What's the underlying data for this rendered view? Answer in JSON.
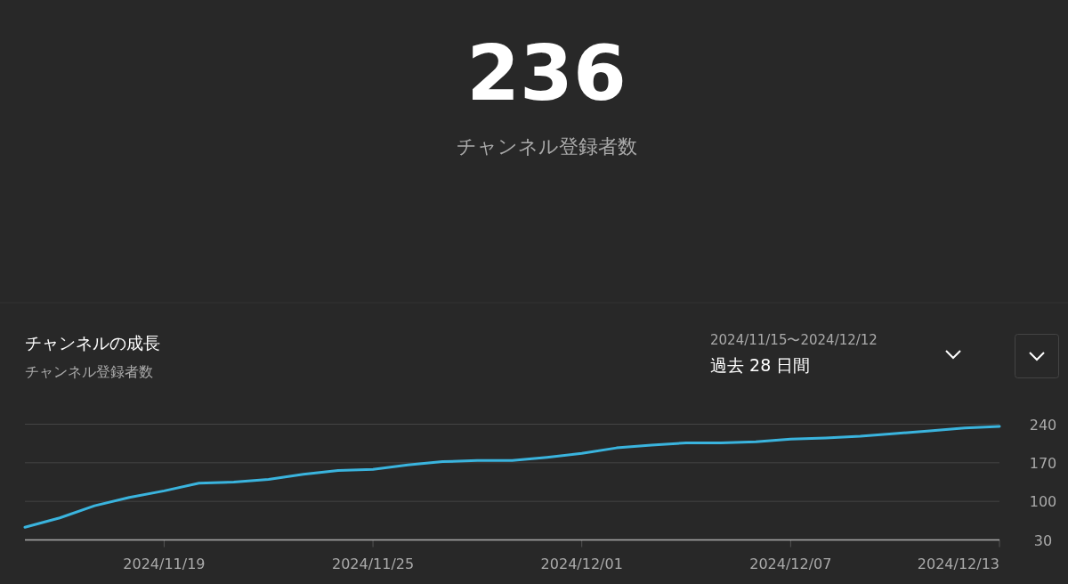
{
  "chart_data": {
    "type": "line",
    "title": "236",
    "subtitle": "チャンネル登録者数",
    "annotations": [
      "チャンネルの成長",
      "チャンネル登録者数",
      "2024/11/15〜2024/12/12",
      "過去 28 日間"
    ],
    "x": [
      "2024-11-15",
      "2024-11-16",
      "2024-11-17",
      "2024-11-18",
      "2024-11-19",
      "2024-11-20",
      "2024-11-21",
      "2024-11-22",
      "2024-11-23",
      "2024-11-24",
      "2024-11-25",
      "2024-11-26",
      "2024-11-27",
      "2024-11-28",
      "2024-11-29",
      "2024-11-30",
      "2024-12-01",
      "2024-12-02",
      "2024-12-03",
      "2024-12-04",
      "2024-12-05",
      "2024-12-06",
      "2024-12-07",
      "2024-12-08",
      "2024-12-09",
      "2024-12-10",
      "2024-12-11",
      "2024-12-12",
      "2024-12-13"
    ],
    "series": [
      {
        "color": "#3ab4de",
        "values": [
          53,
          70,
          92,
          107,
          119,
          133,
          135,
          140,
          149,
          156,
          158,
          166,
          172,
          174,
          174,
          180,
          187,
          197,
          202,
          206,
          206,
          208,
          213,
          215,
          218,
          223,
          228,
          233,
          236
        ]
      }
    ],
    "xlim": [
      "2024-11-15",
      "2024-12-13"
    ],
    "xticks": [
      {
        "value": "2024-11-19",
        "label": "2024/11/19"
      },
      {
        "value": "2024-11-25",
        "label": "2024/11/25"
      },
      {
        "value": "2024-12-01",
        "label": "2024/12/01"
      },
      {
        "value": "2024-12-07",
        "label": "2024/12/07"
      },
      {
        "value": "2024-12-13",
        "label": "2024/12/13"
      }
    ],
    "ylim": [
      30,
      240
    ],
    "yticks": [
      30,
      100,
      170,
      240
    ],
    "grid": "y",
    "marker": "none",
    "line_style": "solid"
  }
}
